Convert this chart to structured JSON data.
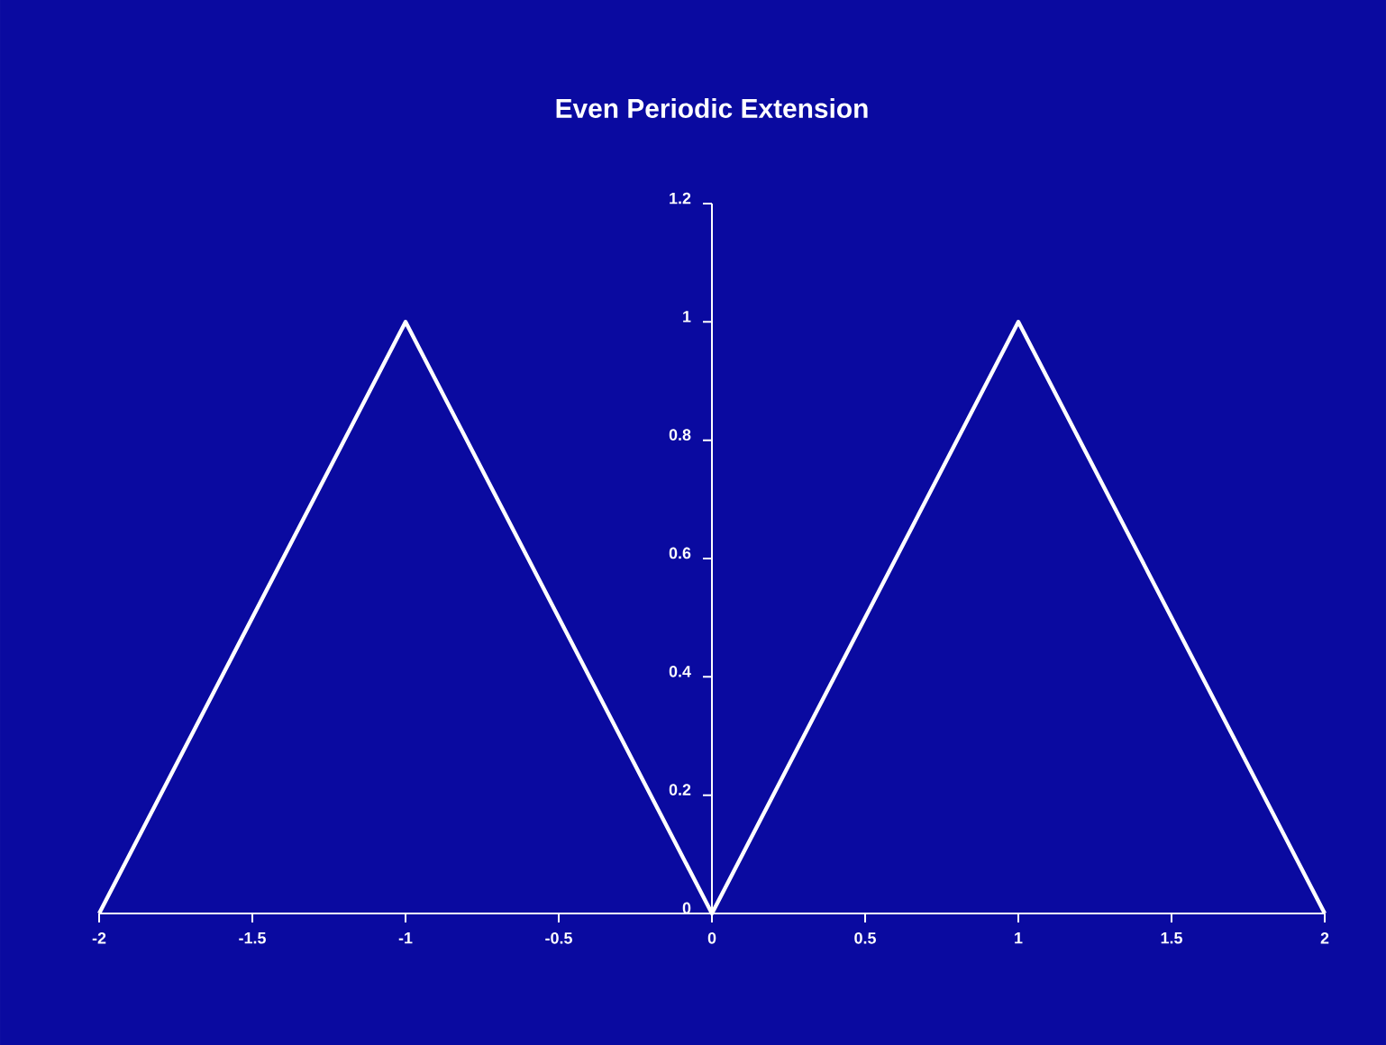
{
  "chart_data": {
    "type": "line",
    "title": "Even Periodic Extension",
    "x": [
      -2,
      -1,
      0,
      1,
      2
    ],
    "series": [
      {
        "color": "#ffffff",
        "values": [
          0,
          1,
          0,
          1,
          0
        ]
      }
    ],
    "xlim": [
      -2,
      2
    ],
    "ylim": [
      0,
      1.2
    ],
    "xticks": [
      -2,
      -1.5,
      -1,
      -0.5,
      0,
      0.5,
      1,
      1.5,
      2
    ],
    "yticks": [
      0,
      0.2,
      0.4,
      0.6,
      0.8,
      1,
      1.2
    ]
  }
}
